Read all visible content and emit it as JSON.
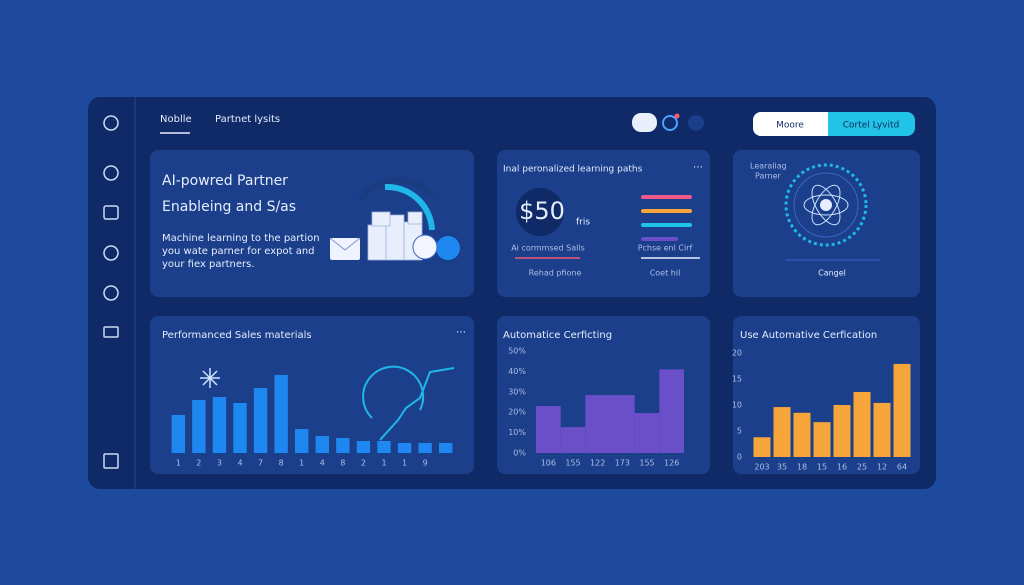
{
  "nav": {
    "tabs": [
      "Noblle",
      "Partnet lysits"
    ],
    "buttons": [
      "Moore",
      "Cortel Lyvitd"
    ]
  },
  "cards": [
    {
      "title": [
        "AI-powred Partner",
        "Enableing and S/as"
      ],
      "body": [
        "Machine learning to the partion",
        "you wate parner for expot and",
        "your fiex partners."
      ]
    },
    {
      "title": "Inal peronalized learning paths",
      "price": "$50",
      "price_note": "fris",
      "left_labels": [
        "Ai cormmsed Salls",
        "Rehad pfione"
      ],
      "right_labels": [
        "Pchse enl Cirf",
        "Coet hil"
      ]
    },
    {
      "title": [
        "Learaliag",
        "Parner"
      ],
      "caption": "Cangel"
    }
  ],
  "charts": [
    {
      "type": "bar",
      "title": "Performanced Sales materials",
      "color": "#1e88f0",
      "categories": [
        "1",
        "2",
        "3",
        "4",
        "7",
        "8",
        "1",
        "4",
        "8",
        "2",
        "1",
        "1",
        "9",
        null
      ],
      "values": [
        38,
        53,
        56,
        50,
        65,
        78,
        24,
        17,
        15,
        12,
        12,
        10,
        10,
        10
      ]
    },
    {
      "type": "bar",
      "title": "Automatice Cerficting",
      "color": "#6a4fc8",
      "categories": [
        "106",
        "155",
        "122",
        "173",
        "155",
        "126"
      ],
      "values": [
        23,
        12.7,
        28.4,
        28.4,
        19.6,
        41
      ],
      "ylim": [
        0,
        50
      ],
      "yticks": [
        {
          "value": 0,
          "label": "0%"
        },
        {
          "value": 10,
          "label": "10%"
        },
        {
          "value": 20,
          "label": "20%"
        },
        {
          "value": 30,
          "label": "30%"
        },
        {
          "value": 40,
          "label": "40%"
        },
        {
          "value": 50,
          "label": "50%"
        }
      ]
    },
    {
      "type": "bar",
      "title": "Use Automative Cerfication",
      "color": "#f5a53a",
      "categories": [
        "203",
        "35",
        "18",
        "15",
        "16",
        "25",
        "12",
        "64"
      ],
      "values": [
        3.8,
        9.6,
        8.5,
        6.7,
        10,
        12.5,
        10.4,
        17.9
      ],
      "ylim": [
        0,
        20
      ],
      "yticks": [
        0,
        5,
        10,
        15,
        20
      ]
    }
  ]
}
